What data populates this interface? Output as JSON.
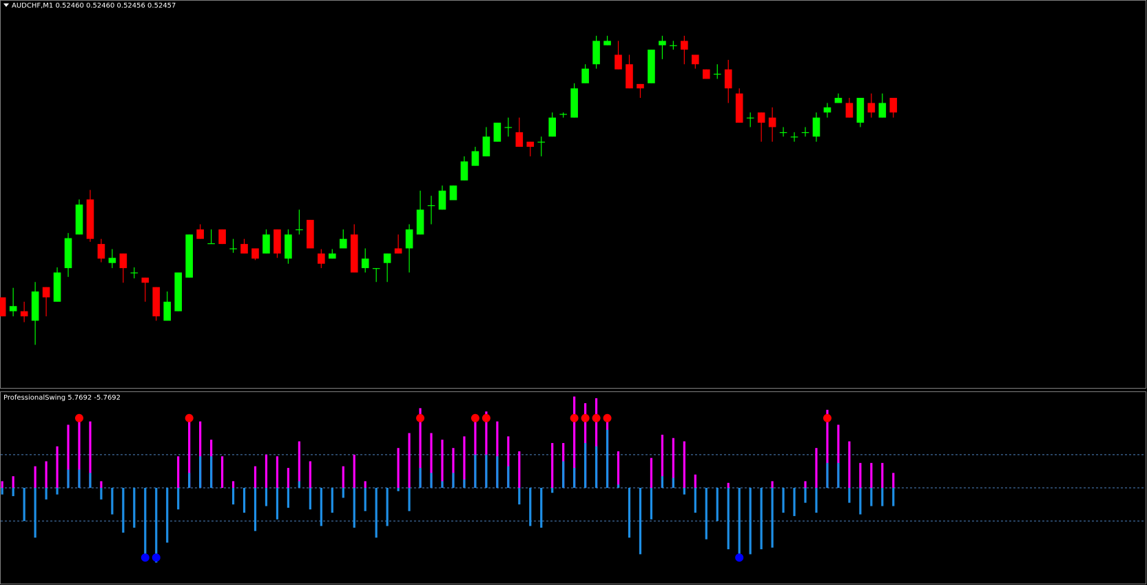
{
  "chart_data": [
    {
      "type": "candlestick",
      "title": "AUDCHF,M1  0.52460 0.52460 0.52456 0.52457",
      "up_color": "#00ff00",
      "down_color": "#ff0000",
      "ylim": [
        0.5208,
        0.5261
      ],
      "open": [
        0.52204,
        0.52185,
        0.52185,
        0.52172,
        0.52218,
        0.52198,
        0.52244,
        0.5229,
        0.52338,
        0.52277,
        0.52251,
        0.52264,
        0.52238,
        0.52231,
        0.52218,
        0.52172,
        0.52185,
        0.52231,
        0.52297,
        0.52278,
        0.52297,
        0.52271,
        0.52277,
        0.52271,
        0.52264,
        0.52297,
        0.52257,
        0.52297,
        0.5231,
        0.52264,
        0.52257,
        0.52271,
        0.5229,
        0.52244,
        0.52244,
        0.52251,
        0.52271,
        0.52271,
        0.5229,
        0.5233,
        0.52324,
        0.52337,
        0.52364,
        0.52384,
        0.52397,
        0.52417,
        0.52437,
        0.5243,
        0.52417,
        0.52417,
        0.52424,
        0.52455,
        0.5245,
        0.52497,
        0.52523,
        0.52549,
        0.52536,
        0.52523,
        0.52496,
        0.52497,
        0.52549,
        0.52549,
        0.52555,
        0.52536,
        0.52516,
        0.5251,
        0.52516,
        0.52483,
        0.5245,
        0.52457,
        0.5245,
        0.5243,
        0.52424,
        0.5243,
        0.52424,
        0.52457,
        0.5247,
        0.5247,
        0.52443,
        0.5247,
        0.5245,
        0.52477
      ],
      "high": [
        0.52204,
        0.52217,
        0.52198,
        0.52225,
        0.52218,
        0.52245,
        0.52292,
        0.52338,
        0.52351,
        0.52284,
        0.5227,
        0.52264,
        0.52245,
        0.52231,
        0.52218,
        0.52212,
        0.52238,
        0.5229,
        0.52304,
        0.52297,
        0.52297,
        0.52284,
        0.52284,
        0.52271,
        0.52297,
        0.52297,
        0.52297,
        0.52324,
        0.5231,
        0.5227,
        0.5227,
        0.52297,
        0.52304,
        0.52271,
        0.52244,
        0.52264,
        0.5229,
        0.52304,
        0.5235,
        0.52343,
        0.52357,
        0.52357,
        0.52397,
        0.5241,
        0.52437,
        0.52443,
        0.5245,
        0.5245,
        0.52417,
        0.52424,
        0.52457,
        0.52457,
        0.52497,
        0.52523,
        0.52562,
        0.52562,
        0.52555,
        0.52536,
        0.52496,
        0.52543,
        0.52562,
        0.52555,
        0.52562,
        0.52536,
        0.52516,
        0.52523,
        0.52529,
        0.5249,
        0.52457,
        0.52457,
        0.52464,
        0.52437,
        0.5243,
        0.52437,
        0.52457,
        0.5247,
        0.52483,
        0.52477,
        0.52477,
        0.52483,
        0.52483,
        0.52477
      ],
      "low": [
        0.52178,
        0.52178,
        0.5217,
        0.52139,
        0.52178,
        0.52198,
        0.52232,
        0.5229,
        0.5228,
        0.52252,
        0.52244,
        0.52224,
        0.5223,
        0.52198,
        0.52172,
        0.52172,
        0.52185,
        0.52231,
        0.52284,
        0.52278,
        0.52277,
        0.52265,
        0.52264,
        0.52255,
        0.52264,
        0.52258,
        0.5225,
        0.5229,
        0.52271,
        0.52244,
        0.52257,
        0.52271,
        0.52238,
        0.52238,
        0.52225,
        0.52225,
        0.52264,
        0.52238,
        0.5229,
        0.52304,
        0.52324,
        0.52337,
        0.52364,
        0.52384,
        0.52397,
        0.52417,
        0.52424,
        0.5241,
        0.52397,
        0.52397,
        0.52424,
        0.5245,
        0.5245,
        0.52497,
        0.52517,
        0.52549,
        0.52516,
        0.5249,
        0.52477,
        0.52497,
        0.5253,
        0.52543,
        0.52523,
        0.52517,
        0.52503,
        0.52503,
        0.5247,
        0.52443,
        0.52437,
        0.52417,
        0.52417,
        0.52424,
        0.52417,
        0.52424,
        0.52417,
        0.5245,
        0.5247,
        0.5245,
        0.52437,
        0.5245,
        0.5245,
        0.5245
      ],
      "close": [
        0.52178,
        0.52192,
        0.52178,
        0.52212,
        0.52204,
        0.52238,
        0.52285,
        0.52331,
        0.52284,
        0.52257,
        0.52258,
        0.52244,
        0.52238,
        0.52224,
        0.52178,
        0.52198,
        0.52238,
        0.5229,
        0.52284,
        0.52278,
        0.52277,
        0.52271,
        0.52264,
        0.52257,
        0.5229,
        0.52264,
        0.5229,
        0.52297,
        0.52271,
        0.5225,
        0.52264,
        0.52284,
        0.52238,
        0.52257,
        0.52244,
        0.52264,
        0.52264,
        0.52297,
        0.52324,
        0.5233,
        0.5235,
        0.52357,
        0.5239,
        0.52404,
        0.52424,
        0.52443,
        0.52437,
        0.5241,
        0.5241,
        0.52417,
        0.5245,
        0.52455,
        0.5249,
        0.52517,
        0.52555,
        0.52555,
        0.52516,
        0.5249,
        0.5249,
        0.52543,
        0.52555,
        0.52549,
        0.52543,
        0.52523,
        0.52503,
        0.5251,
        0.5249,
        0.52443,
        0.5245,
        0.52443,
        0.52437,
        0.5243,
        0.52424,
        0.5243,
        0.5245,
        0.52464,
        0.52477,
        0.5245,
        0.52477,
        0.52457,
        0.5247,
        0.52457
      ]
    },
    {
      "type": "bar",
      "title": "ProfessionalSwing 5.7692 -5.7692",
      "ylim": [
        -5.7692,
        5.7692
      ],
      "levels": [
        -2,
        0,
        2
      ],
      "level_color": "#4f86c6",
      "series": [
        {
          "color": "#ff00ff",
          "values": [
            0.4,
            0.7,
            0,
            1.3,
            1.6,
            2.5,
            3.8,
            4.3,
            4.0,
            0.4,
            0,
            0,
            0,
            0,
            0,
            0,
            1.9,
            4.2,
            4.0,
            2.9,
            1.9,
            0.4,
            0,
            1.3,
            2.0,
            1.9,
            1.2,
            2.8,
            1.6,
            0,
            0,
            1.3,
            2.0,
            0.4,
            0,
            0,
            2.4,
            3.3,
            4.8,
            3.3,
            2.9,
            2.4,
            3.1,
            4.2,
            4.6,
            4.0,
            3.1,
            2.2,
            0,
            0,
            2.7,
            2.7,
            5.5,
            5.1,
            5.4,
            4.2,
            2.2,
            0,
            0,
            1.8,
            3.2,
            3.0,
            2.8,
            0.8,
            0,
            0,
            0.3,
            0,
            0,
            0,
            0.4,
            0,
            0,
            0.4,
            2.4,
            4.7,
            3.8,
            2.8,
            1.5,
            1.5,
            1.5,
            0.9
          ]
        },
        {
          "color": "#1e8fe6",
          "values": [
            -0.4,
            -0.5,
            -2.0,
            -3.0,
            -0.7,
            -0.4,
            1.1,
            1.1,
            0.9,
            -0.7,
            -1.6,
            -2.7,
            -2.4,
            -4.2,
            -4.5,
            -3.3,
            -1.3,
            0.9,
            1.9,
            1.9,
            0,
            -1.0,
            -1.5,
            -2.6,
            -1.1,
            -1.9,
            -1.2,
            0.4,
            -1.3,
            -2.3,
            -1.5,
            -0.6,
            -2.4,
            -1.4,
            -3.0,
            -2.3,
            -0.2,
            -1.4,
            1.2,
            0.9,
            0.4,
            0.9,
            0.5,
            2.0,
            2.0,
            1.9,
            1.3,
            -1.0,
            -2.3,
            -2.4,
            -0.3,
            1.6,
            1.2,
            2.7,
            2.5,
            3.5,
            0.2,
            -3.0,
            -4.0,
            -1.9,
            0.7,
            0.6,
            -0.4,
            -1.5,
            -3.1,
            -2.0,
            -3.7,
            -4.4,
            -4.0,
            -3.7,
            -3.6,
            -1.5,
            -1.7,
            -0.9,
            -1.5,
            1.5,
            1.5,
            -0.9,
            -1.6,
            -1.1,
            -1.1,
            -1.1
          ]
        }
      ],
      "signals": [
        {
          "color": "#ff0000",
          "x": [
            7,
            17,
            38,
            43,
            44,
            52,
            53,
            54,
            55,
            75
          ],
          "values": [
            4.2,
            4.2,
            4.2,
            4.2,
            4.2,
            4.2,
            4.2,
            4.2,
            4.2,
            4.2
          ]
        },
        {
          "color": "#0000ff",
          "x": [
            13,
            14,
            67
          ],
          "values": [
            -4.2,
            -4.2,
            -4.2
          ]
        }
      ]
    }
  ]
}
